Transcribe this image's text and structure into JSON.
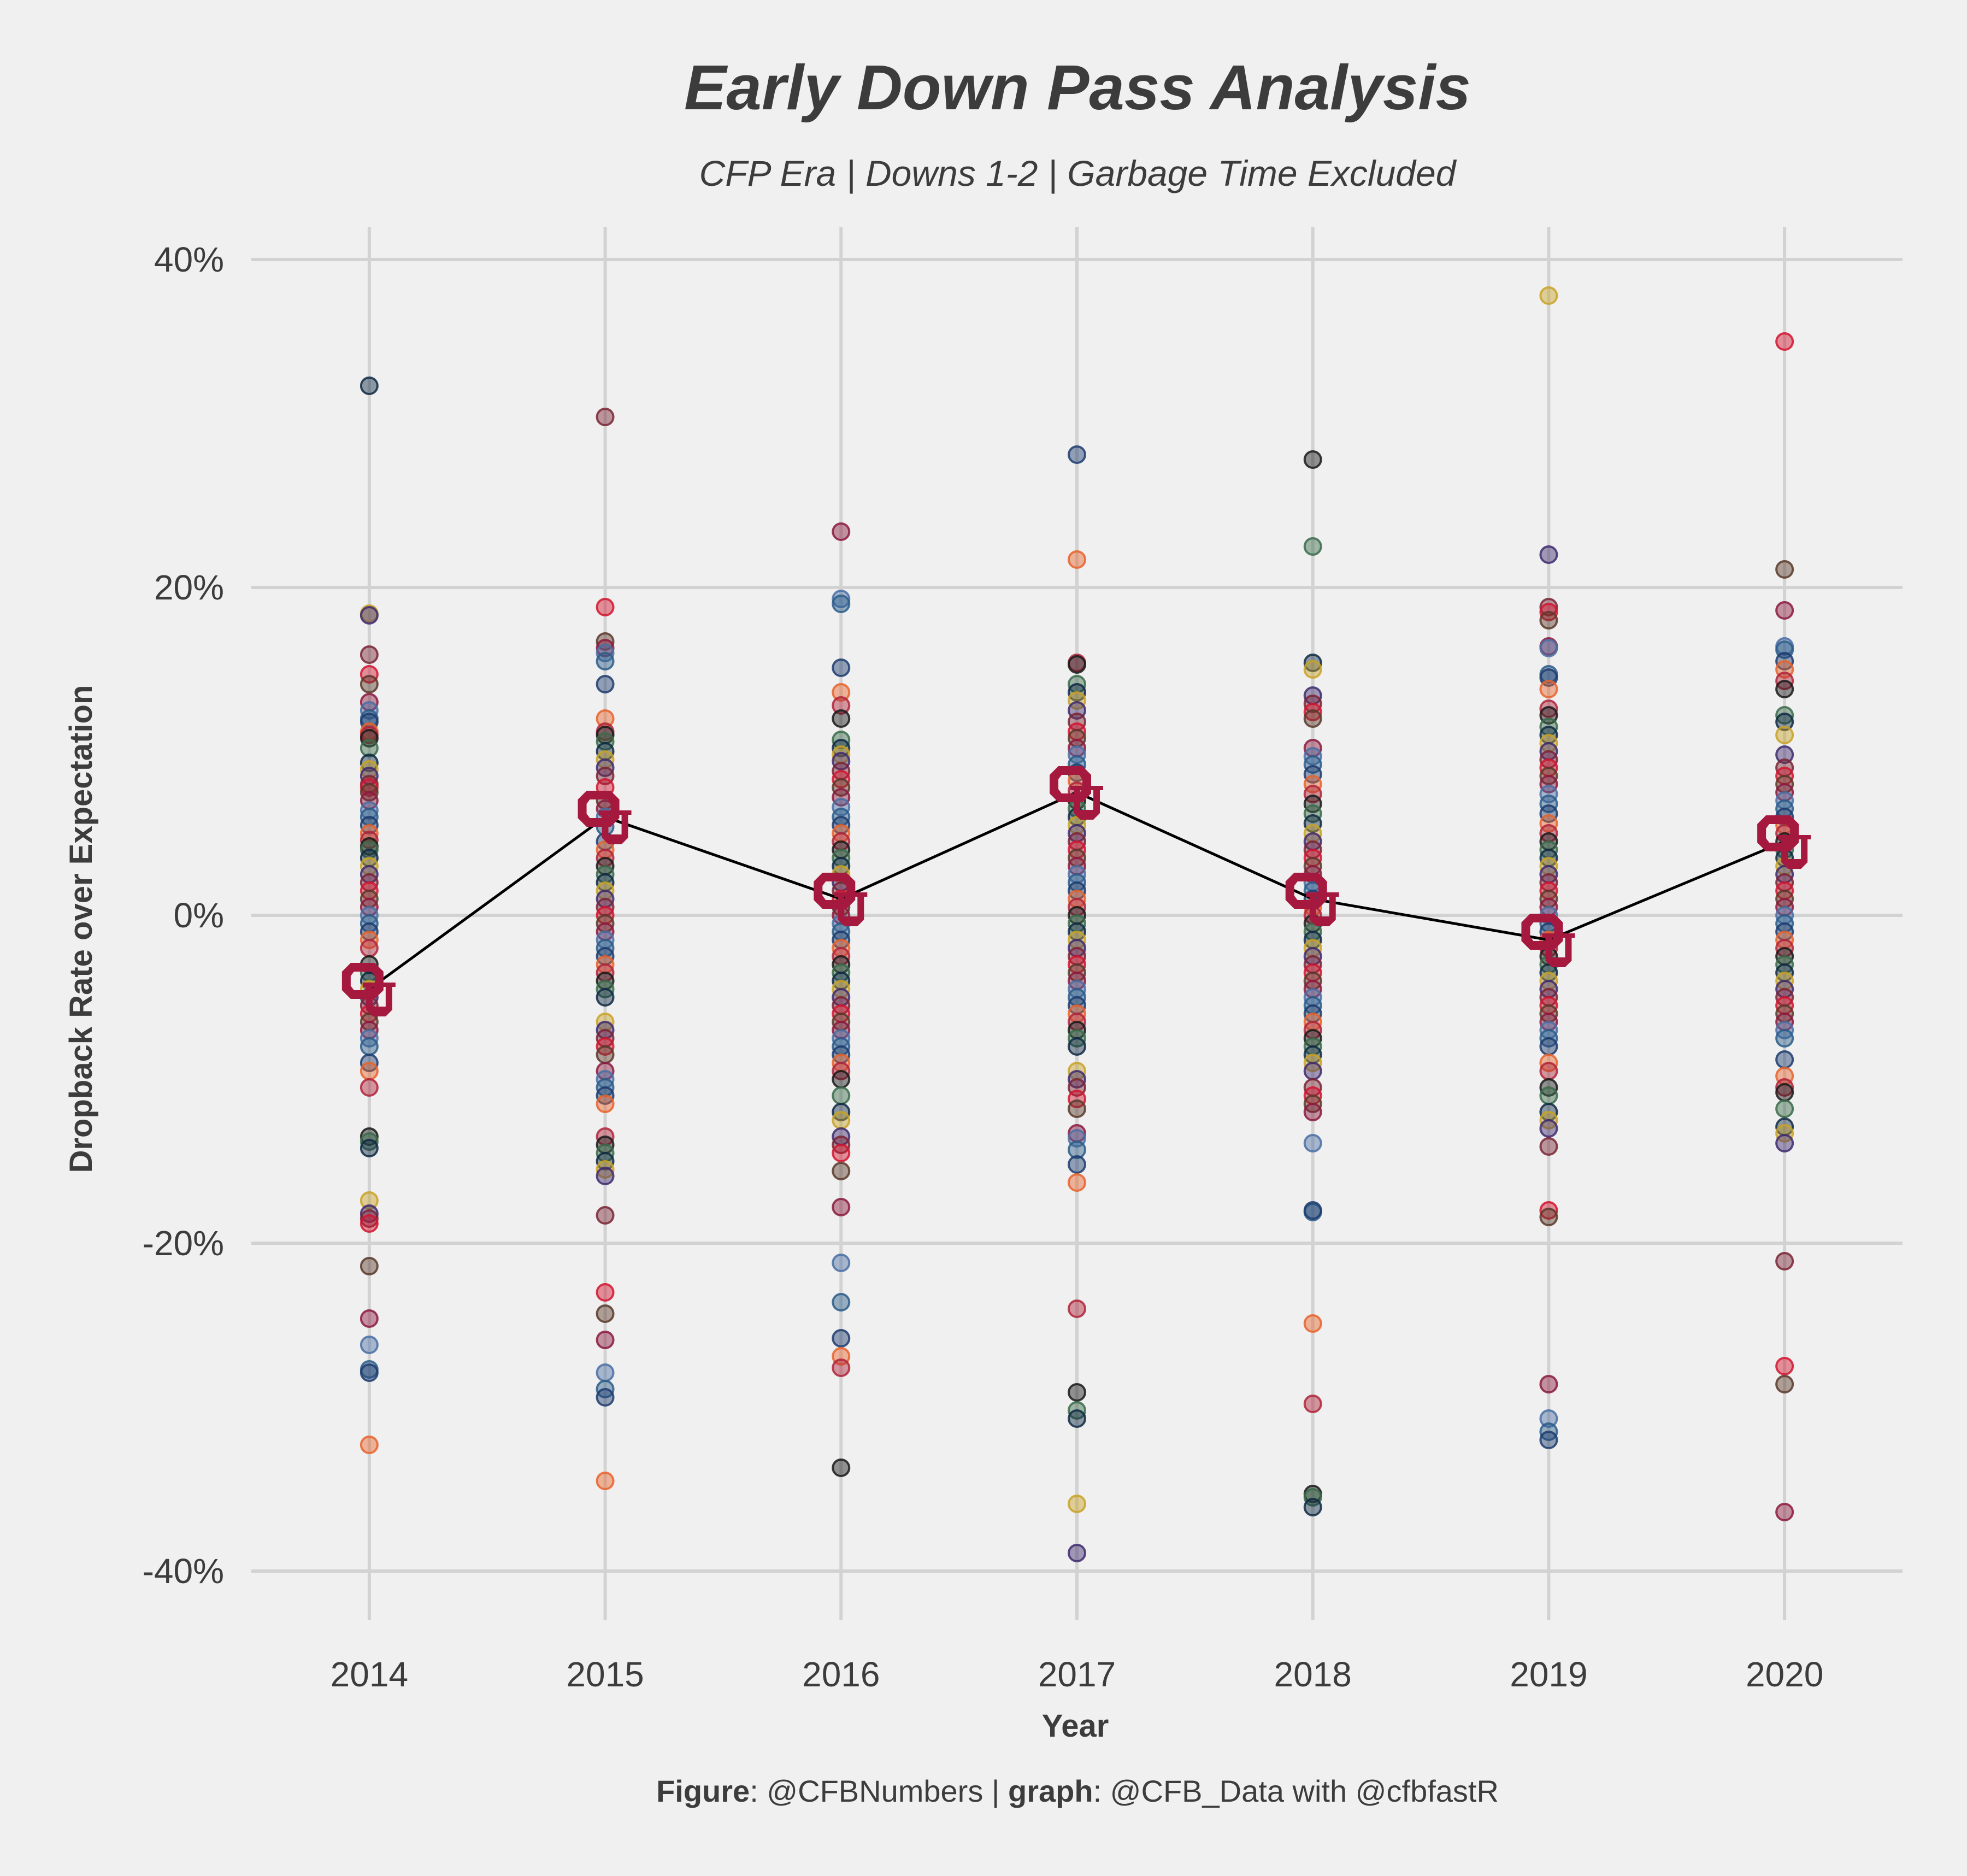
{
  "chart_data": {
    "type": "scatter",
    "title": "Early Down Pass Analysis",
    "subtitle": "CFP Era | Downs 1-2 | Garbage Time Excluded",
    "xlabel": "Year",
    "ylabel": "Dropback Rate over Expectation",
    "caption": {
      "figure_label": "Figure",
      "figure_value": ": @CFBNumbers | ",
      "graph_label": "graph",
      "graph_value": ": @CFB_Data with @cfbfastR"
    },
    "x_ticks": [
      "2014",
      "2015",
      "2016",
      "2017",
      "2018",
      "2019",
      "2020"
    ],
    "y_ticks": [
      "-40%",
      "-20%",
      "0%",
      "20%",
      "40%"
    ],
    "y_tick_values": [
      -40,
      -20,
      0,
      20,
      40
    ],
    "ylim": [
      -43,
      42
    ],
    "grid": true,
    "legend": "none",
    "colors": {
      "background": "#f0f0f0",
      "grid": "#d2d2d2",
      "text": "#3c3c3c",
      "highlight": "#a6193f",
      "line": "#000000"
    },
    "point_palette": [
      "#8b1a3f",
      "#1d3c6e",
      "#1a1a1a",
      "#c9a227",
      "#d2152f",
      "#4a6fa5",
      "#e8632c",
      "#3a6b4a",
      "#3e2a6e",
      "#5a3a2a",
      "#2b5d8a",
      "#b0243a",
      "#0f2a44",
      "#7a2535"
    ],
    "highlight_series": {
      "name": "OU",
      "x": [
        2014,
        2015,
        2016,
        2017,
        2018,
        2019,
        2020
      ],
      "y": [
        -4.5,
        6.0,
        1.0,
        7.5,
        1.0,
        -1.5,
        4.5
      ]
    },
    "series": [
      {
        "x": 2014,
        "y": [
          32.3,
          18.4,
          18.3,
          15.9,
          14.7,
          14.1,
          13.0,
          12.5,
          12.0,
          11.8,
          11.2,
          11.0,
          10.8,
          10.2,
          9.3,
          8.9,
          8.5,
          8.0,
          7.8,
          7.5,
          7.0,
          6.4,
          6.0,
          5.5,
          5.0,
          4.6,
          4.2,
          4.0,
          3.5,
          3.0,
          2.5,
          2.0,
          1.5,
          1.0,
          0.5,
          0.0,
          -0.5,
          -1.0,
          -1.5,
          -2.0,
          -3.0,
          -3.5,
          -4.0,
          -4.5,
          -5.0,
          -5.5,
          -6.0,
          -6.5,
          -7.0,
          -7.5,
          -8.0,
          -9.0,
          -9.5,
          -10.5,
          -13.5,
          -13.8,
          -14.2,
          -17.4,
          -18.2,
          -18.5,
          -18.8,
          -21.4,
          -24.6,
          -26.2,
          -27.7,
          -27.9,
          -32.3
        ]
      },
      {
        "x": 2015,
        "y": [
          30.4,
          18.8,
          16.7,
          16.3,
          16.0,
          15.5,
          14.1,
          12.0,
          11.2,
          11.0,
          10.6,
          10.0,
          9.5,
          9.0,
          8.5,
          7.8,
          7.0,
          6.5,
          6.0,
          5.4,
          4.5,
          4.0,
          3.5,
          3.0,
          2.5,
          2.0,
          1.5,
          1.0,
          0.5,
          0.0,
          -0.5,
          -1.0,
          -1.5,
          -2.0,
          -2.5,
          -3.0,
          -3.5,
          -4.0,
          -4.5,
          -5.0,
          -6.5,
          -7.0,
          -7.5,
          -8.0,
          -8.5,
          -9.5,
          -10.0,
          -10.5,
          -11.0,
          -11.5,
          -13.5,
          -14.0,
          -14.5,
          -15.0,
          -15.5,
          -15.9,
          -18.3,
          -23.0,
          -24.3,
          -25.9,
          -27.9,
          -28.9,
          -29.4,
          -34.5
        ]
      },
      {
        "x": 2016,
        "y": [
          23.4,
          19.3,
          19.0,
          15.1,
          13.6,
          12.8,
          12.0,
          10.7,
          10.2,
          9.8,
          9.4,
          8.8,
          8.3,
          7.8,
          7.2,
          6.6,
          6.0,
          5.5,
          5.0,
          4.5,
          4.0,
          3.5,
          3.0,
          2.5,
          2.0,
          1.5,
          1.0,
          0.5,
          0.0,
          -0.5,
          -1.0,
          -1.5,
          -2.0,
          -2.5,
          -3.0,
          -3.5,
          -4.0,
          -4.5,
          -5.0,
          -5.5,
          -6.0,
          -6.5,
          -7.0,
          -7.5,
          -8.0,
          -8.5,
          -9.0,
          -9.5,
          -10.0,
          -11.0,
          -12.0,
          -12.5,
          -13.5,
          -14.0,
          -14.5,
          -15.6,
          -17.8,
          -21.2,
          -23.6,
          -25.8,
          -26.9,
          -27.6,
          -33.7
        ]
      },
      {
        "x": 2017,
        "y": [
          28.1,
          21.7,
          15.4,
          15.3,
          14.1,
          13.6,
          13.1,
          12.5,
          11.8,
          11.2,
          10.8,
          10.2,
          9.8,
          9.2,
          8.7,
          8.2,
          7.6,
          7.0,
          6.5,
          6.0,
          5.5,
          5.0,
          4.5,
          4.0,
          3.5,
          3.0,
          2.5,
          2.0,
          1.5,
          1.0,
          0.5,
          0.0,
          -0.5,
          -1.0,
          -1.5,
          -2.0,
          -2.5,
          -3.0,
          -3.5,
          -4.0,
          -4.5,
          -5.0,
          -5.5,
          -6.0,
          -6.5,
          -7.0,
          -7.5,
          -8.0,
          -9.5,
          -10.0,
          -10.5,
          -11.2,
          -11.8,
          -13.3,
          -13.6,
          -14.3,
          -15.2,
          -16.3,
          -24.0,
          -29.1,
          -30.2,
          -30.7,
          -35.9,
          -38.9
        ]
      },
      {
        "x": 2018,
        "y": [
          27.8,
          22.5,
          15.4,
          15.0,
          13.4,
          12.9,
          12.4,
          12.0,
          10.2,
          9.7,
          9.2,
          8.6,
          8.0,
          7.4,
          6.8,
          6.2,
          5.6,
          5.0,
          4.5,
          4.0,
          3.5,
          3.0,
          2.5,
          2.0,
          1.5,
          1.0,
          0.5,
          0.0,
          -0.5,
          -1.0,
          -1.5,
          -2.0,
          -2.5,
          -3.0,
          -3.5,
          -4.0,
          -4.5,
          -5.0,
          -5.5,
          -6.0,
          -6.5,
          -7.0,
          -7.5,
          -8.0,
          -8.5,
          -9.0,
          -9.5,
          -10.5,
          -11.0,
          -11.5,
          -12.0,
          -13.9,
          -18.1,
          -18.0,
          -24.9,
          -29.8,
          -35.3,
          -35.5,
          -36.1
        ]
      },
      {
        "x": 2019,
        "y": [
          37.8,
          22.0,
          18.8,
          18.5,
          18.0,
          16.4,
          16.3,
          14.7,
          14.5,
          13.8,
          12.6,
          12.2,
          11.5,
          11.0,
          10.5,
          10.0,
          9.5,
          9.0,
          8.5,
          8.0,
          7.4,
          6.8,
          6.2,
          5.6,
          5.0,
          4.5,
          4.0,
          3.5,
          3.0,
          2.5,
          2.0,
          1.5,
          1.0,
          0.5,
          0.0,
          -0.5,
          -1.0,
          -1.5,
          -2.0,
          -2.5,
          -3.0,
          -3.5,
          -4.0,
          -4.5,
          -5.0,
          -5.5,
          -6.0,
          -6.5,
          -7.0,
          -7.5,
          -8.0,
          -9.0,
          -9.5,
          -10.5,
          -11.0,
          -12.0,
          -12.5,
          -13.0,
          -14.1,
          -18.0,
          -18.4,
          -28.6,
          -30.7,
          -31.5,
          -32.0
        ]
      },
      {
        "x": 2020,
        "y": [
          35.0,
          21.1,
          18.6,
          16.4,
          16.2,
          15.5,
          15.0,
          14.3,
          13.8,
          12.2,
          11.8,
          11.0,
          9.8,
          9.0,
          8.5,
          8.0,
          7.5,
          7.0,
          6.5,
          6.0,
          5.5,
          5.0,
          4.5,
          4.0,
          3.5,
          3.0,
          2.5,
          2.0,
          1.5,
          1.0,
          0.5,
          0.0,
          -0.5,
          -1.0,
          -1.5,
          -2.0,
          -2.5,
          -3.0,
          -3.5,
          -4.0,
          -4.5,
          -5.0,
          -5.5,
          -6.0,
          -6.5,
          -7.0,
          -7.5,
          -8.8,
          -9.8,
          -10.5,
          -10.8,
          -11.8,
          -12.9,
          -13.3,
          -13.9,
          -21.1,
          -27.5,
          -28.6,
          -36.4
        ]
      }
    ]
  }
}
